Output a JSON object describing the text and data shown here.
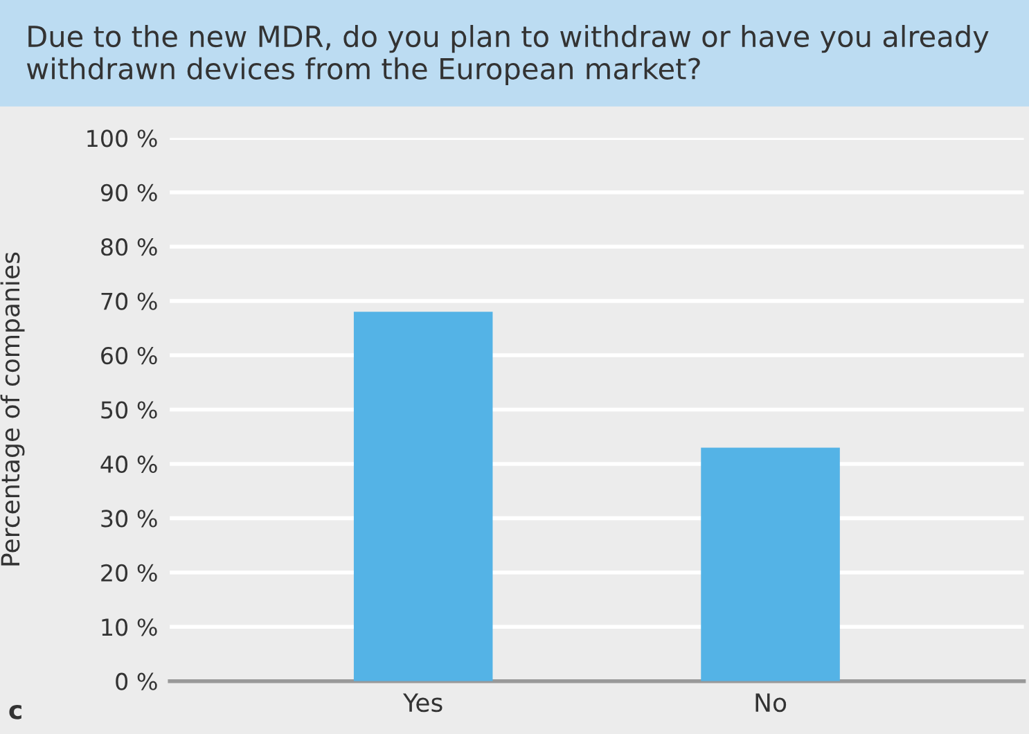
{
  "chart_data": {
    "type": "bar",
    "title": "Due to the new MDR, do you plan to withdraw or have you already withdrawn devices from the European market?",
    "ylabel": "Percentage of companies",
    "categories": [
      "Yes",
      "No"
    ],
    "values": [
      68,
      43
    ],
    "color": "#54b3e6",
    "ylim": [
      0,
      100
    ],
    "yticks": [
      {
        "value": 0,
        "label": "0 %"
      },
      {
        "value": 10,
        "label": "10 %"
      },
      {
        "value": 20,
        "label": "20 %"
      },
      {
        "value": 30,
        "label": "30 %"
      },
      {
        "value": 40,
        "label": "40 %"
      },
      {
        "value": 50,
        "label": "50 %"
      },
      {
        "value": 60,
        "label": "60 %"
      },
      {
        "value": 70,
        "label": "70 %"
      },
      {
        "value": 80,
        "label": "80 %"
      },
      {
        "value": 90,
        "label": "90 %"
      },
      {
        "value": 100,
        "label": "100 %"
      }
    ],
    "grid": "y",
    "annotations": [
      "c"
    ]
  }
}
